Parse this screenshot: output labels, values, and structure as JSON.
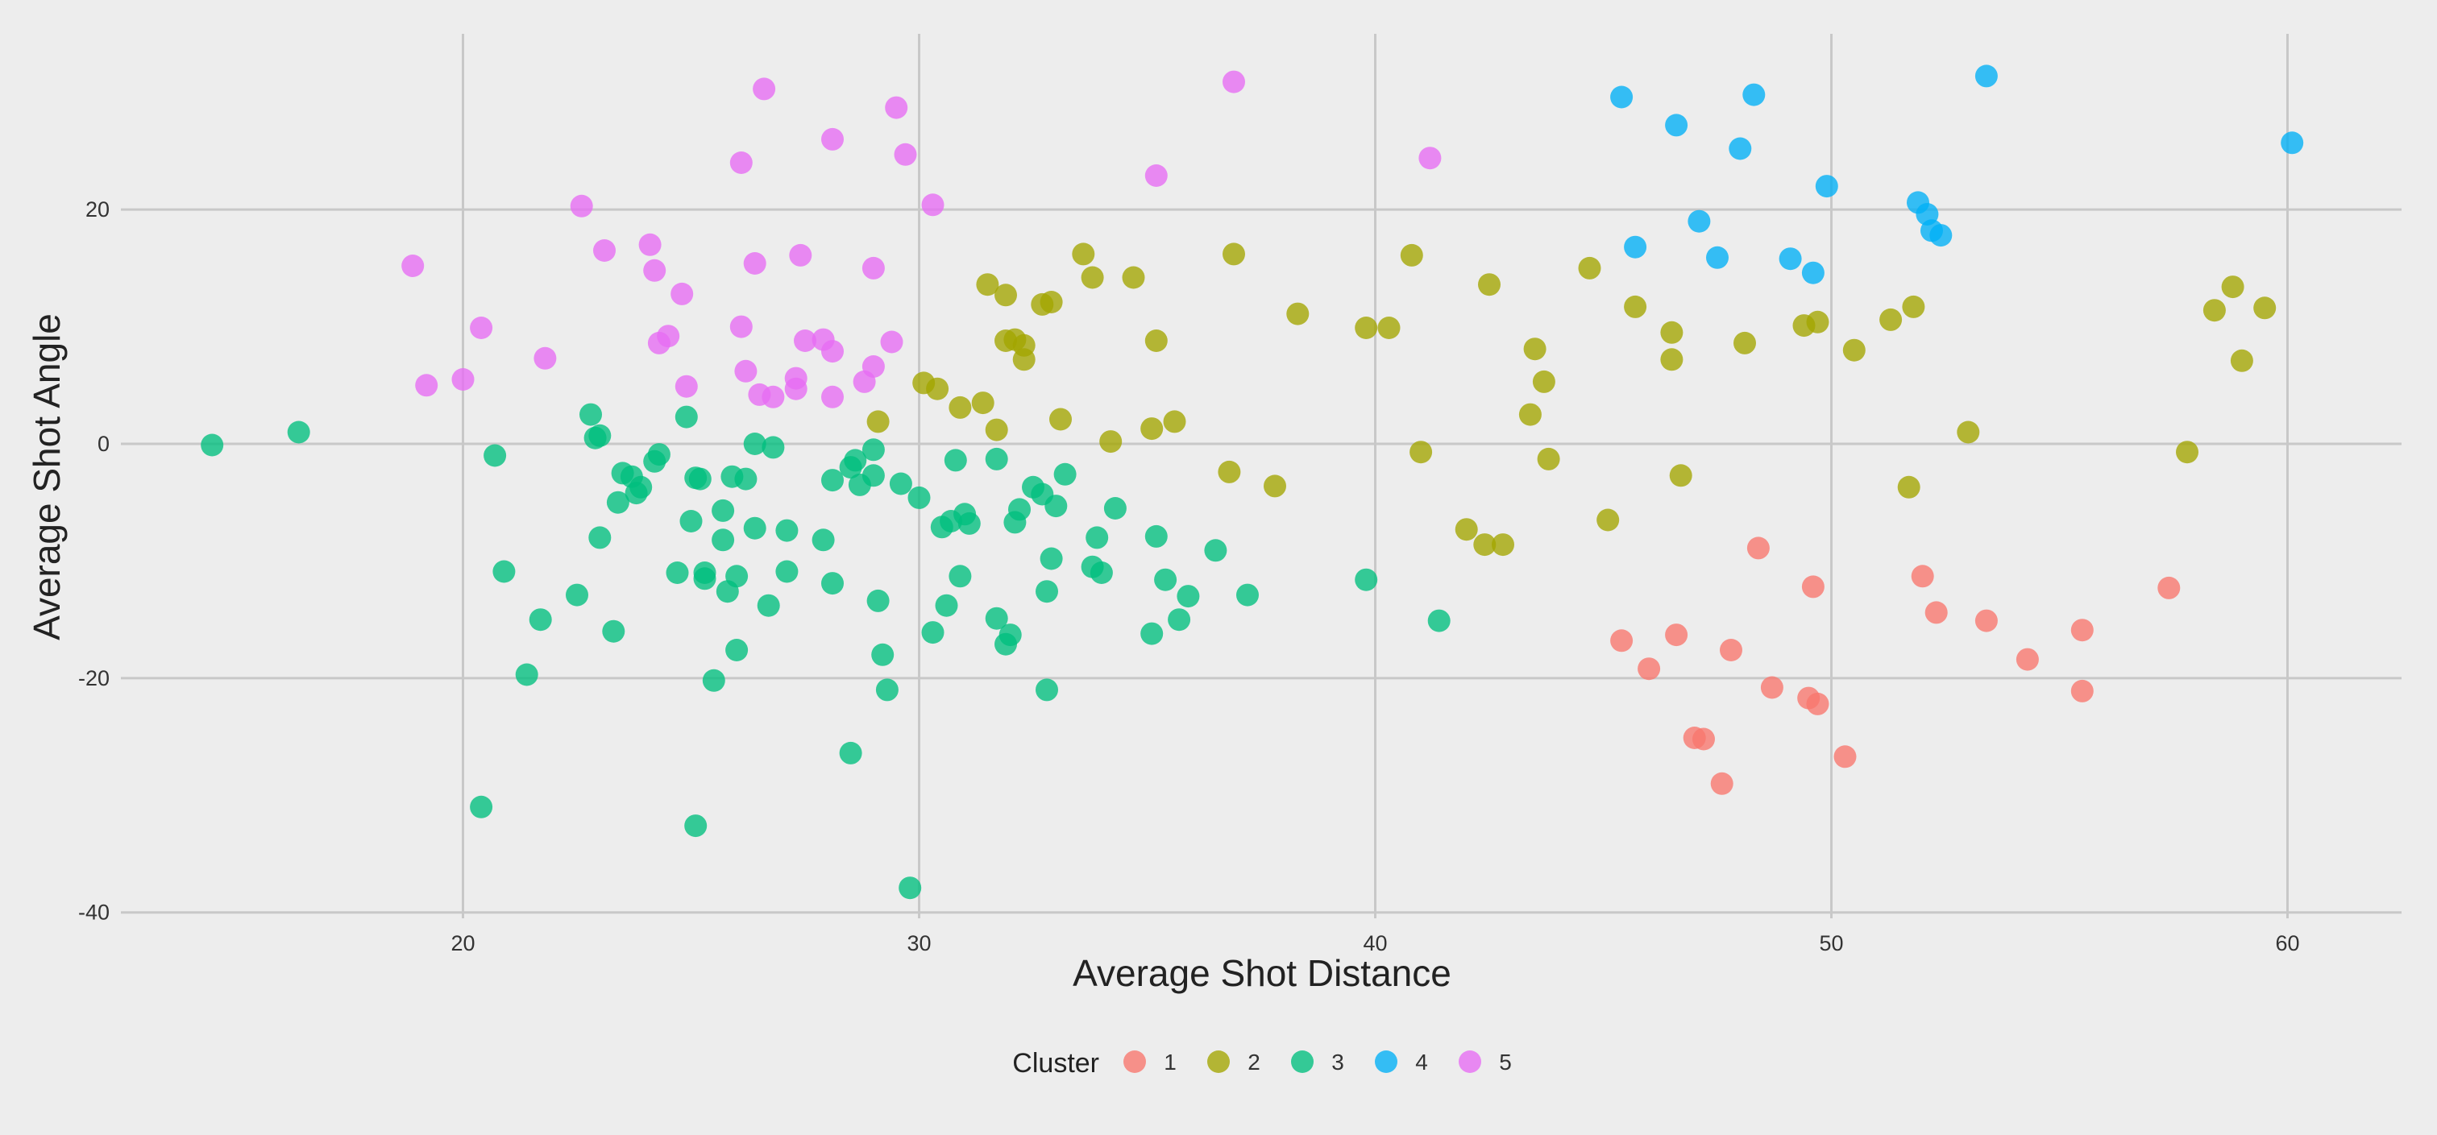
{
  "chart_data": {
    "type": "scatter",
    "title": "",
    "xlabel": "Average Shot Distance",
    "ylabel": "Average Shot Angle",
    "xlim": [
      12.5,
      62.5
    ],
    "ylim": [
      -40.5,
      35
    ],
    "x_ticks": [
      20,
      30,
      40,
      50,
      60
    ],
    "y_ticks": [
      -40,
      -20,
      0,
      20
    ],
    "x_tick_labels": [
      "20",
      "30",
      "40",
      "50",
      "60"
    ],
    "y_tick_labels": [
      "-40",
      "-20",
      "0",
      "20"
    ],
    "grid": true,
    "legend_position": "bottom",
    "legend_title": "Cluster",
    "series": [
      {
        "name": "1",
        "color": "#F8766D",
        "points": [
          [
            45.4,
            -16.8
          ],
          [
            46.0,
            -19.2
          ],
          [
            46.6,
            -16.3
          ],
          [
            47.0,
            -25.1
          ],
          [
            47.2,
            -25.2
          ],
          [
            47.6,
            -29.0
          ],
          [
            47.8,
            -17.6
          ],
          [
            48.4,
            -8.9
          ],
          [
            48.7,
            -20.8
          ],
          [
            49.5,
            -21.7
          ],
          [
            49.6,
            -12.2
          ],
          [
            49.7,
            -22.2
          ],
          [
            50.3,
            -26.7
          ],
          [
            52.0,
            -11.3
          ],
          [
            52.3,
            -14.4
          ],
          [
            53.4,
            -15.1
          ],
          [
            54.3,
            -18.4
          ],
          [
            55.5,
            -15.9
          ],
          [
            55.5,
            -21.1
          ],
          [
            57.4,
            -12.3
          ]
        ]
      },
      {
        "name": "2",
        "color": "#A3A500",
        "points": [
          [
            29.1,
            1.9
          ],
          [
            30.1,
            5.2
          ],
          [
            30.4,
            4.7
          ],
          [
            30.9,
            3.1
          ],
          [
            31.4,
            3.5
          ],
          [
            31.5,
            13.6
          ],
          [
            31.7,
            1.2
          ],
          [
            31.9,
            12.7
          ],
          [
            31.9,
            8.8
          ],
          [
            32.1,
            8.9
          ],
          [
            32.3,
            8.4
          ],
          [
            32.3,
            7.2
          ],
          [
            32.7,
            11.9
          ],
          [
            32.9,
            12.1
          ],
          [
            33.1,
            2.1
          ],
          [
            33.6,
            16.2
          ],
          [
            33.8,
            14.2
          ],
          [
            34.2,
            0.2
          ],
          [
            34.7,
            14.2
          ],
          [
            35.2,
            8.8
          ],
          [
            35.1,
            1.3
          ],
          [
            35.6,
            1.9
          ],
          [
            36.8,
            -2.4
          ],
          [
            36.9,
            16.2
          ],
          [
            37.8,
            -3.6
          ],
          [
            38.3,
            11.1
          ],
          [
            39.8,
            9.9
          ],
          [
            40.3,
            9.9
          ],
          [
            40.8,
            16.1
          ],
          [
            41.0,
            -0.7
          ],
          [
            42.0,
            -7.3
          ],
          [
            42.4,
            -8.6
          ],
          [
            42.5,
            13.6
          ],
          [
            42.8,
            -8.6
          ],
          [
            43.4,
            2.5
          ],
          [
            43.5,
            8.1
          ],
          [
            43.7,
            5.3
          ],
          [
            43.8,
            -1.3
          ],
          [
            44.7,
            15.0
          ],
          [
            45.1,
            -6.5
          ],
          [
            45.7,
            11.7
          ],
          [
            46.5,
            9.5
          ],
          [
            46.5,
            7.2
          ],
          [
            46.7,
            -2.7
          ],
          [
            48.1,
            8.6
          ],
          [
            49.4,
            10.1
          ],
          [
            49.7,
            10.4
          ],
          [
            50.5,
            8.0
          ],
          [
            51.3,
            10.6
          ],
          [
            51.7,
            -3.7
          ],
          [
            51.8,
            11.7
          ],
          [
            53.0,
            1.0
          ],
          [
            57.8,
            -0.7
          ],
          [
            58.4,
            11.4
          ],
          [
            58.8,
            13.4
          ],
          [
            59.0,
            7.1
          ],
          [
            59.5,
            11.6
          ]
        ]
      },
      {
        "name": "3",
        "color": "#00BF7D",
        "points": [
          [
            14.5,
            -0.1
          ],
          [
            16.4,
            1.0
          ],
          [
            20.4,
            -31.0
          ],
          [
            20.7,
            -1.0
          ],
          [
            20.9,
            -10.9
          ],
          [
            21.4,
            -19.7
          ],
          [
            21.7,
            -15.0
          ],
          [
            22.5,
            -12.9
          ],
          [
            22.8,
            2.5
          ],
          [
            22.9,
            0.5
          ],
          [
            23.0,
            0.7
          ],
          [
            23.0,
            -8.0
          ],
          [
            23.3,
            -16.0
          ],
          [
            23.4,
            -5.0
          ],
          [
            23.5,
            -2.5
          ],
          [
            23.7,
            -2.8
          ],
          [
            23.8,
            -4.2
          ],
          [
            23.9,
            -3.7
          ],
          [
            24.2,
            -1.5
          ],
          [
            24.3,
            -0.9
          ],
          [
            24.7,
            -11.0
          ],
          [
            24.9,
            2.3
          ],
          [
            25.0,
            -6.6
          ],
          [
            25.1,
            -2.9
          ],
          [
            25.2,
            -3.0
          ],
          [
            25.1,
            -32.6
          ],
          [
            25.3,
            -11.0
          ],
          [
            25.3,
            -11.5
          ],
          [
            25.5,
            -20.2
          ],
          [
            25.7,
            -5.7
          ],
          [
            25.7,
            -8.2
          ],
          [
            25.8,
            -12.6
          ],
          [
            25.9,
            -2.8
          ],
          [
            26.0,
            -11.3
          ],
          [
            26.0,
            -17.6
          ],
          [
            26.2,
            -3.0
          ],
          [
            26.4,
            -7.2
          ],
          [
            26.4,
            0.0
          ],
          [
            26.7,
            -13.8
          ],
          [
            26.8,
            -0.3
          ],
          [
            27.1,
            -7.4
          ],
          [
            27.1,
            -10.9
          ],
          [
            27.9,
            -8.2
          ],
          [
            28.1,
            -3.1
          ],
          [
            28.1,
            -11.9
          ],
          [
            28.5,
            -2.0
          ],
          [
            28.5,
            -26.4
          ],
          [
            28.6,
            -1.4
          ],
          [
            28.7,
            -3.5
          ],
          [
            29.0,
            -0.5
          ],
          [
            29.0,
            -2.7
          ],
          [
            29.1,
            -13.4
          ],
          [
            29.2,
            -18.0
          ],
          [
            29.3,
            -21.0
          ],
          [
            29.6,
            -3.4
          ],
          [
            29.8,
            -37.9
          ],
          [
            30.0,
            -4.6
          ],
          [
            30.3,
            -16.1
          ],
          [
            30.5,
            -7.1
          ],
          [
            30.6,
            -13.8
          ],
          [
            30.7,
            -6.6
          ],
          [
            30.8,
            -1.4
          ],
          [
            30.9,
            -11.3
          ],
          [
            31.0,
            -6.0
          ],
          [
            31.1,
            -6.8
          ],
          [
            31.7,
            -14.9
          ],
          [
            31.7,
            -1.3
          ],
          [
            31.9,
            -17.1
          ],
          [
            32.0,
            -16.3
          ],
          [
            32.1,
            -6.7
          ],
          [
            32.2,
            -5.6
          ],
          [
            32.5,
            -3.7
          ],
          [
            32.7,
            -4.3
          ],
          [
            32.8,
            -12.6
          ],
          [
            32.8,
            -21.0
          ],
          [
            32.9,
            -9.8
          ],
          [
            33.0,
            -5.3
          ],
          [
            33.2,
            -2.6
          ],
          [
            33.8,
            -10.5
          ],
          [
            33.9,
            -8.0
          ],
          [
            34.0,
            -11.0
          ],
          [
            34.3,
            -5.5
          ],
          [
            35.1,
            -16.2
          ],
          [
            35.2,
            -7.9
          ],
          [
            35.4,
            -11.6
          ],
          [
            35.7,
            -15.0
          ],
          [
            35.9,
            -13.0
          ],
          [
            36.5,
            -9.1
          ],
          [
            37.2,
            -12.9
          ],
          [
            39.8,
            -11.6
          ],
          [
            41.4,
            -15.1
          ]
        ]
      },
      {
        "name": "4",
        "color": "#00B0F6",
        "points": [
          [
            45.4,
            29.6
          ],
          [
            45.7,
            16.8
          ],
          [
            46.6,
            27.2
          ],
          [
            47.1,
            19.0
          ],
          [
            47.5,
            15.9
          ],
          [
            48.0,
            25.2
          ],
          [
            48.3,
            29.8
          ],
          [
            49.1,
            15.8
          ],
          [
            49.6,
            14.6
          ],
          [
            49.9,
            22.0
          ],
          [
            51.9,
            20.6
          ],
          [
            52.1,
            19.6
          ],
          [
            52.2,
            18.2
          ],
          [
            52.4,
            17.8
          ],
          [
            53.4,
            31.4
          ],
          [
            60.1,
            25.7
          ]
        ]
      },
      {
        "name": "5",
        "color": "#E76BF3",
        "points": [
          [
            18.9,
            15.2
          ],
          [
            19.2,
            5.0
          ],
          [
            20.0,
            5.5
          ],
          [
            20.4,
            9.9
          ],
          [
            21.8,
            7.3
          ],
          [
            22.6,
            20.3
          ],
          [
            23.1,
            16.5
          ],
          [
            24.1,
            17.0
          ],
          [
            24.2,
            14.8
          ],
          [
            24.3,
            8.6
          ],
          [
            24.5,
            9.2
          ],
          [
            24.8,
            12.8
          ],
          [
            24.9,
            4.9
          ],
          [
            26.1,
            24.0
          ],
          [
            26.1,
            10.0
          ],
          [
            26.2,
            6.2
          ],
          [
            26.4,
            15.4
          ],
          [
            26.5,
            4.2
          ],
          [
            26.6,
            30.3
          ],
          [
            26.8,
            4.0
          ],
          [
            27.3,
            4.7
          ],
          [
            27.3,
            5.6
          ],
          [
            27.4,
            16.1
          ],
          [
            27.5,
            8.8
          ],
          [
            27.9,
            8.9
          ],
          [
            28.1,
            7.9
          ],
          [
            28.1,
            26.0
          ],
          [
            28.1,
            4.0
          ],
          [
            28.8,
            5.3
          ],
          [
            29.0,
            15.0
          ],
          [
            29.0,
            6.6
          ],
          [
            29.4,
            8.7
          ],
          [
            29.5,
            28.7
          ],
          [
            29.7,
            24.7
          ],
          [
            30.3,
            20.4
          ],
          [
            35.2,
            22.9
          ],
          [
            36.9,
            30.9
          ],
          [
            41.2,
            24.4
          ]
        ]
      }
    ]
  }
}
